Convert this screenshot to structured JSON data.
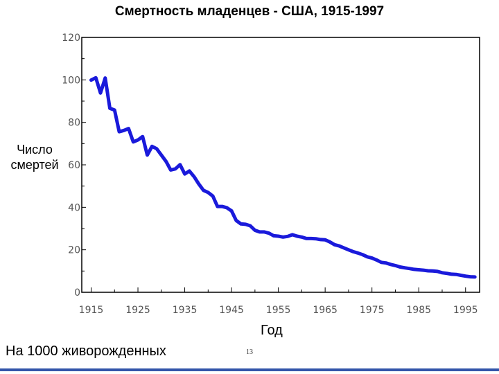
{
  "chart_data": {
    "type": "line",
    "title": "Смертность младенцев - США, 1915-1997",
    "xlabel": "Год",
    "ylabel": "Число смертей",
    "xlim": [
      1913,
      1998
    ],
    "ylim": [
      0,
      120
    ],
    "x_ticks": [
      1915,
      1925,
      1935,
      1945,
      1955,
      1965,
      1975,
      1985,
      1995
    ],
    "y_ticks": [
      0,
      20,
      40,
      60,
      80,
      100,
      120
    ],
    "grid": false,
    "line_color": "#1a1adb",
    "series": [
      {
        "x": [
          1915,
          1916,
          1917,
          1918,
          1919,
          1920,
          1921,
          1922,
          1923,
          1924,
          1925,
          1926,
          1927,
          1928,
          1929,
          1930,
          1931,
          1932,
          1933,
          1934,
          1935,
          1936,
          1937,
          1938,
          1939,
          1940,
          1941,
          1942,
          1943,
          1944,
          1945,
          1946,
          1947,
          1948,
          1949,
          1950,
          1951,
          1952,
          1953,
          1954,
          1955,
          1956,
          1957,
          1958,
          1959,
          1960,
          1961,
          1962,
          1963,
          1964,
          1965,
          1966,
          1967,
          1968,
          1969,
          1970,
          1971,
          1972,
          1973,
          1974,
          1975,
          1976,
          1977,
          1978,
          1979,
          1980,
          1981,
          1982,
          1983,
          1984,
          1985,
          1986,
          1987,
          1988,
          1989,
          1990,
          1991,
          1992,
          1993,
          1994,
          1995,
          1996,
          1997
        ],
        "y": [
          99.9,
          101,
          93.8,
          100.9,
          86.6,
          85.8,
          75.6,
          76.2,
          77.1,
          70.8,
          71.7,
          73.3,
          64.6,
          68.7,
          67.6,
          64.6,
          61.6,
          57.6,
          58.1,
          60.1,
          55.7,
          57.1,
          54.4,
          51.0,
          48.0,
          47.0,
          45.3,
          40.4,
          40.4,
          39.8,
          38.3,
          33.8,
          32.2,
          32.0,
          31.3,
          29.2,
          28.4,
          28.4,
          27.8,
          26.6,
          26.4,
          26.0,
          26.3,
          27.1,
          26.4,
          26.0,
          25.3,
          25.3,
          25.2,
          24.8,
          24.7,
          23.7,
          22.4,
          21.8,
          20.9,
          20.0,
          19.1,
          18.5,
          17.7,
          16.7,
          16.1,
          15.2,
          14.1,
          13.8,
          13.1,
          12.6,
          11.9,
          11.5,
          11.2,
          10.8,
          10.6,
          10.4,
          10.1,
          10.0,
          9.8,
          9.2,
          8.9,
          8.5,
          8.4,
          8.0,
          7.6,
          7.3,
          7.2
        ]
      }
    ]
  },
  "footnote": "На 1000 живорожденных",
  "page_number": "13"
}
